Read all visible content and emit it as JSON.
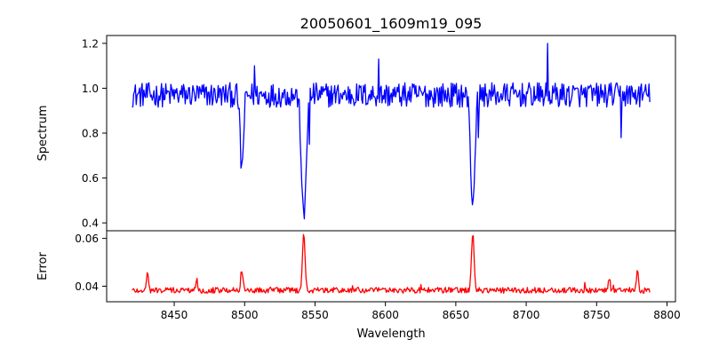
{
  "chart_data": {
    "type": "line",
    "title": "20050601_1609m19_095",
    "xlabel": "Wavelength",
    "xlim": [
      8402,
      8806
    ],
    "xticks": [
      8450,
      8500,
      8550,
      8600,
      8650,
      8700,
      8750,
      8800
    ],
    "panels": [
      {
        "id": "spectrum",
        "ylabel": "Spectrum",
        "ylim": [
          0.365,
          1.235
        ],
        "yticks": [
          0.4,
          0.6,
          0.8,
          1.0,
          1.2
        ],
        "ytick_labels": [
          "0.4",
          "0.6",
          "0.8",
          "1.0",
          "1.2"
        ],
        "series": [
          {
            "color": "#0000ff",
            "baseline": 0.97,
            "noise": 0.055,
            "x_start": 8420,
            "x_end": 8788,
            "dx": 0.6,
            "features": [
              {
                "center": 8498.0,
                "depth": 0.33,
                "width": 1.2
              },
              {
                "center": 8542.0,
                "depth": 0.56,
                "width": 1.6
              },
              {
                "center": 8662.0,
                "depth": 0.48,
                "width": 1.5
              }
            ],
            "spikes": [
              {
                "x": 8715.5,
                "y": 1.2
              },
              {
                "x": 8595.5,
                "y": 1.13
              },
              {
                "x": 8507.0,
                "y": 1.1
              },
              {
                "x": 8767.5,
                "y": 0.78
              },
              {
                "x": 8546.0,
                "y": 0.75
              },
              {
                "x": 8666.0,
                "y": 0.78
              }
            ]
          }
        ]
      },
      {
        "id": "error",
        "ylabel": "Error",
        "ylim": [
          0.0335,
          0.0632
        ],
        "yticks": [
          0.04,
          0.06
        ],
        "ytick_labels": [
          "0.04",
          "0.06"
        ],
        "series": [
          {
            "color": "#ff0000",
            "baseline": 0.0383,
            "noise": 0.0012,
            "x_start": 8420,
            "x_end": 8788,
            "dx": 0.6,
            "features": [
              {
                "center": 8498.0,
                "depth": 0.0085,
                "width": 0.8
              },
              {
                "center": 8542.0,
                "depth": 0.024,
                "width": 0.9
              },
              {
                "center": 8662.0,
                "depth": 0.024,
                "width": 0.9
              },
              {
                "center": 8431.0,
                "depth": 0.008,
                "width": 0.6
              },
              {
                "center": 8466.0,
                "depth": 0.0055,
                "width": 0.6
              },
              {
                "center": 8759.0,
                "depth": 0.0055,
                "width": 0.6
              },
              {
                "center": 8779.0,
                "depth": 0.0075,
                "width": 0.7
              }
            ],
            "spikes": []
          }
        ]
      }
    ]
  }
}
